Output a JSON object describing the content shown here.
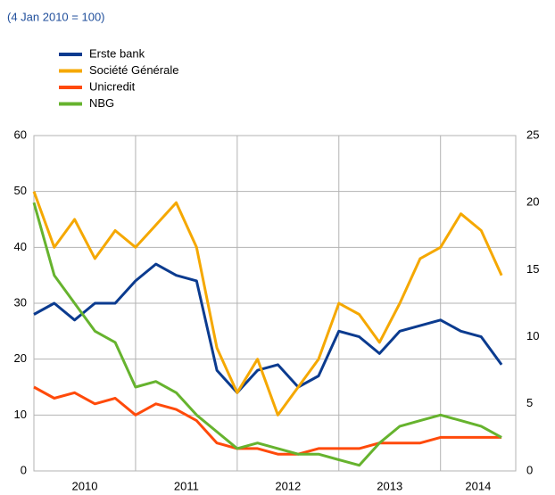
{
  "chart_data": {
    "type": "line",
    "subtitle": "(4 Jan 2010 = 100)",
    "x": [
      2010.0,
      2010.2,
      2010.4,
      2010.6,
      2010.8,
      2011.0,
      2011.2,
      2011.4,
      2011.6,
      2011.8,
      2012.0,
      2012.2,
      2012.4,
      2012.6,
      2012.8,
      2013.0,
      2013.2,
      2013.4,
      2013.6,
      2013.8,
      2014.0,
      2014.2,
      2014.4,
      2014.6
    ],
    "series": [
      {
        "name": "Erste bank",
        "color": "#0b3b8f",
        "values": [
          28,
          30,
          27,
          30,
          30,
          34,
          37,
          35,
          34,
          18,
          14,
          18,
          19,
          15,
          17,
          25,
          24,
          21,
          25,
          26,
          27,
          25,
          24,
          19
        ]
      },
      {
        "name": "Société Générale",
        "color": "#f5a800",
        "values": [
          50,
          40,
          45,
          38,
          43,
          40,
          44,
          48,
          40,
          22,
          14,
          20,
          10,
          15,
          20,
          30,
          28,
          23,
          30,
          38,
          40,
          46,
          43,
          35
        ]
      },
      {
        "name": "Unicredit",
        "color": "#ff4a0a",
        "values": [
          15,
          13,
          14,
          12,
          13,
          10,
          12,
          11,
          9,
          5,
          4,
          4,
          3,
          3,
          4,
          4,
          4,
          5,
          5,
          5,
          6,
          6,
          6,
          6
        ]
      },
      {
        "name": "NBG",
        "color": "#66b32e",
        "values": [
          48,
          35,
          30,
          25,
          23,
          15,
          16,
          14,
          10,
          7,
          4,
          5,
          4,
          3,
          3,
          2,
          1,
          5,
          8,
          9,
          10,
          9,
          8,
          6
        ]
      }
    ],
    "xlim": [
      2010,
      2014.74
    ],
    "xticks": [
      {
        "value": 2010.5,
        "label": "2010"
      },
      {
        "value": 2011.5,
        "label": "2011"
      },
      {
        "value": 2012.5,
        "label": "2012"
      },
      {
        "value": 2013.5,
        "label": "2013"
      },
      {
        "value": 2014.37,
        "label": "2014"
      }
    ],
    "xgrid": [
      2011,
      2012,
      2013,
      2014
    ],
    "ylim": [
      0,
      60
    ],
    "yticks": [
      0,
      10,
      20,
      30,
      40,
      50,
      60
    ],
    "y2lim": [
      0,
      25
    ],
    "y2ticks": [
      0,
      5,
      10,
      15,
      20,
      25
    ],
    "grid": true
  }
}
